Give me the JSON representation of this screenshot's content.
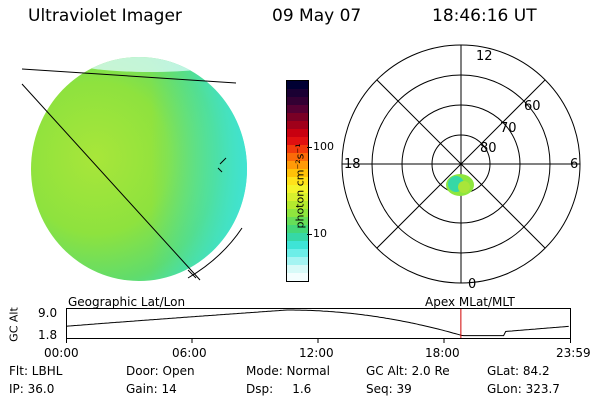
{
  "header": {
    "instrument": "Ultraviolet Imager",
    "date": "09 May 07",
    "time": "18:46:16 UT"
  },
  "colorbar": {
    "unit_label": "photon cm⁻²s⁻¹",
    "ticks": [
      "100",
      "10"
    ],
    "colors": [
      "#000033",
      "#1a0033",
      "#330033",
      "#550033",
      "#7a0025",
      "#a0001a",
      "#c80010",
      "#e01010",
      "#f23a0a",
      "#fb6a08",
      "#ff9a08",
      "#ffc108",
      "#ffe21a",
      "#f4f42a",
      "#d8f02e",
      "#b4ea2e",
      "#8ee63e",
      "#66de58",
      "#44d878",
      "#36d8a6",
      "#3ee4d6",
      "#6ceee8",
      "#a4f4f2",
      "#d8faf8",
      "#f4fefe"
    ]
  },
  "polar": {
    "lat_labels": [
      "80",
      "70",
      "60"
    ],
    "mlt_labels": {
      "top": "12",
      "left": "18",
      "right": "6",
      "bottom": "0"
    }
  },
  "timeline": {
    "axis_label": "GC Alt",
    "y_max": "9.0",
    "y_min": "1.8",
    "left_title": "Geographic Lat/Lon",
    "right_title": "Apex MLat/MLT",
    "x_ticks": [
      "00:00",
      "06:00",
      "12:00",
      "18:00",
      "23:59"
    ],
    "current_time": "18:46",
    "marker_color": "#d00000"
  },
  "info": {
    "flt": "Flt: LBHL",
    "door": "Door: Open",
    "mode": "Mode: Normal",
    "gc_alt": "GC Alt: 2.0 Re",
    "glat": "GLat:  84.2",
    "ip": "IP: 36.0",
    "gain": "Gain: 14",
    "dsp": "Dsp:     1.6",
    "seq": "Seq: 39",
    "glon": "GLon: 323.7"
  }
}
